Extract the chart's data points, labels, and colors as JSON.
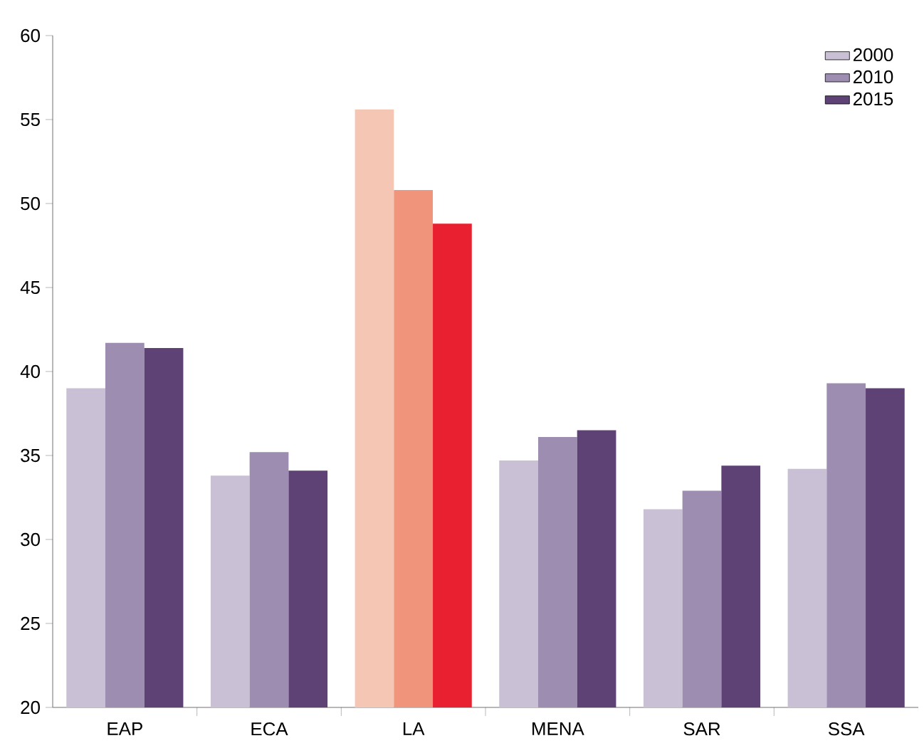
{
  "chart_data": {
    "type": "bar",
    "categories": [
      "EAP",
      "ECA",
      "LA",
      "MENA",
      "SAR",
      "SSA"
    ],
    "series": [
      {
        "name": "2000",
        "color": "#c9c0d6",
        "colors": [
          "#c9c0d6",
          "#c9c0d6",
          "#f6c6b4",
          "#c9c0d6",
          "#c9c0d6",
          "#c9c0d6"
        ],
        "values": [
          39.0,
          33.8,
          55.6,
          34.7,
          31.8,
          34.2
        ]
      },
      {
        "name": "2010",
        "color": "#9d8db0",
        "colors": [
          "#9d8db0",
          "#9d8db0",
          "#f0957c",
          "#9d8db0",
          "#9d8db0",
          "#9d8db0"
        ],
        "values": [
          41.7,
          35.2,
          50.8,
          36.1,
          32.9,
          39.3
        ]
      },
      {
        "name": "2015",
        "color": "#5e4276",
        "colors": [
          "#5e4276",
          "#5e4276",
          "#e8202f",
          "#5e4276",
          "#5e4276",
          "#5e4276"
        ],
        "values": [
          41.4,
          34.1,
          48.8,
          36.5,
          34.4,
          39.0
        ]
      }
    ],
    "ylim": [
      20,
      60
    ],
    "yticks": [
      20,
      25,
      30,
      35,
      40,
      45,
      50,
      55,
      60
    ],
    "legend": "top right"
  }
}
